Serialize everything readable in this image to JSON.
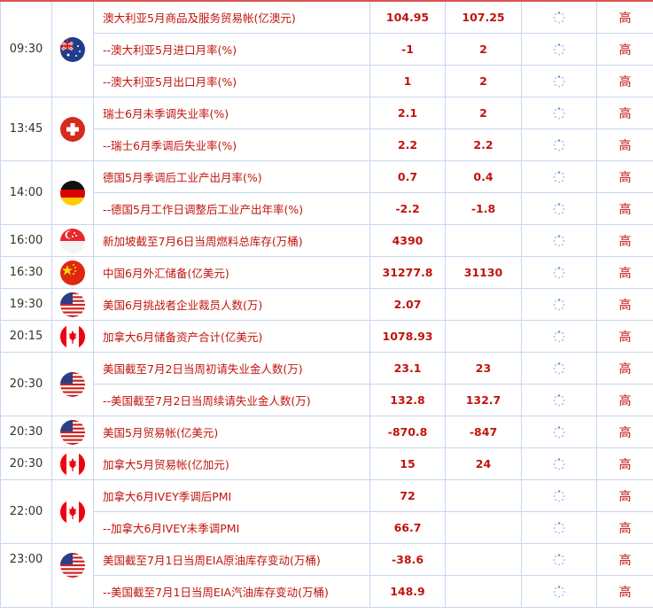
{
  "groups": [
    {
      "time": "09:30",
      "country": "australia",
      "rows": [
        {
          "name": "澳大利亚5月商品及服务贸易帐(亿澳元)",
          "prev": "104.95",
          "forecast": "107.25",
          "importance": "高"
        },
        {
          "name": "--澳大利亚5月进口月率(%)",
          "prev": "-1",
          "forecast": "2",
          "importance": "高"
        },
        {
          "name": "--澳大利亚5月出口月率(%)",
          "prev": "1",
          "forecast": "2",
          "importance": "高"
        }
      ]
    },
    {
      "time": "13:45",
      "country": "switzerland",
      "rows": [
        {
          "name": "瑞士6月未季调失业率(%)",
          "prev": "2.1",
          "forecast": "2",
          "importance": "高"
        },
        {
          "name": "--瑞士6月季调后失业率(%)",
          "prev": "2.2",
          "forecast": "2.2",
          "importance": "高"
        }
      ]
    },
    {
      "time": "14:00",
      "country": "germany",
      "rows": [
        {
          "name": "德国5月季调后工业产出月率(%)",
          "prev": "0.7",
          "forecast": "0.4",
          "importance": "高"
        },
        {
          "name": "--德国5月工作日调整后工业产出年率(%)",
          "prev": "-2.2",
          "forecast": "-1.8",
          "importance": "高"
        }
      ]
    },
    {
      "time": "16:00",
      "country": "singapore",
      "rows": [
        {
          "name": "新加坡截至7月6日当周燃料总库存(万桶)",
          "prev": "4390",
          "forecast": "",
          "importance": "高"
        }
      ]
    },
    {
      "time": "16:30",
      "country": "china",
      "rows": [
        {
          "name": "中国6月外汇储备(亿美元)",
          "prev": "31277.8",
          "forecast": "31130",
          "importance": "高"
        }
      ]
    },
    {
      "time": "19:30",
      "country": "usa",
      "rows": [
        {
          "name": "美国6月挑战者企业裁员人数(万)",
          "prev": "2.07",
          "forecast": "",
          "importance": "高"
        }
      ]
    },
    {
      "time": "20:15",
      "country": "canada",
      "rows": [
        {
          "name": "加拿大6月储备资产合计(亿美元)",
          "prev": "1078.93",
          "forecast": "",
          "importance": "高"
        }
      ]
    },
    {
      "time": "20:30",
      "country": "usa",
      "rows": [
        {
          "name": "美国截至7月2日当周初请失业金人数(万)",
          "prev": "23.1",
          "forecast": "23",
          "importance": "高"
        },
        {
          "name": "--美国截至7月2日当周续请失业金人数(万)",
          "prev": "132.8",
          "forecast": "132.7",
          "importance": "高"
        }
      ]
    },
    {
      "time": "20:30",
      "country": "usa",
      "rows": [
        {
          "name": "美国5月贸易帐(亿美元)",
          "prev": "-870.8",
          "forecast": "-847",
          "importance": "高"
        }
      ]
    },
    {
      "time": "20:30",
      "country": "canada",
      "rows": [
        {
          "name": "加拿大5月贸易帐(亿加元)",
          "prev": "15",
          "forecast": "24",
          "importance": "高"
        }
      ]
    },
    {
      "time": "22:00",
      "country": "canada",
      "rows": [
        {
          "name": "加拿大6月IVEY季调后PMI",
          "prev": "72",
          "forecast": "",
          "importance": "高"
        },
        {
          "name": "--加拿大6月IVEY未季调PMI",
          "prev": "66.7",
          "forecast": "",
          "importance": "高"
        }
      ]
    },
    {
      "time": "23:00",
      "country": "usa",
      "cut": true,
      "rows": [
        {
          "name": "美国截至7月1日当周EIA原油库存变动(万桶)",
          "prev": "-38.6",
          "forecast": "",
          "importance": "高"
        },
        {
          "name": "--美国截至7月1日当周EIA汽油库存变动(万桶)",
          "prev": "148.9",
          "forecast": "",
          "importance": "高"
        }
      ]
    }
  ],
  "colors": {
    "text": "#c0140c",
    "border": "#c6d7f0",
    "top_border": "#d9534f"
  },
  "icons": {
    "actual": "loading-spinner-icon"
  }
}
